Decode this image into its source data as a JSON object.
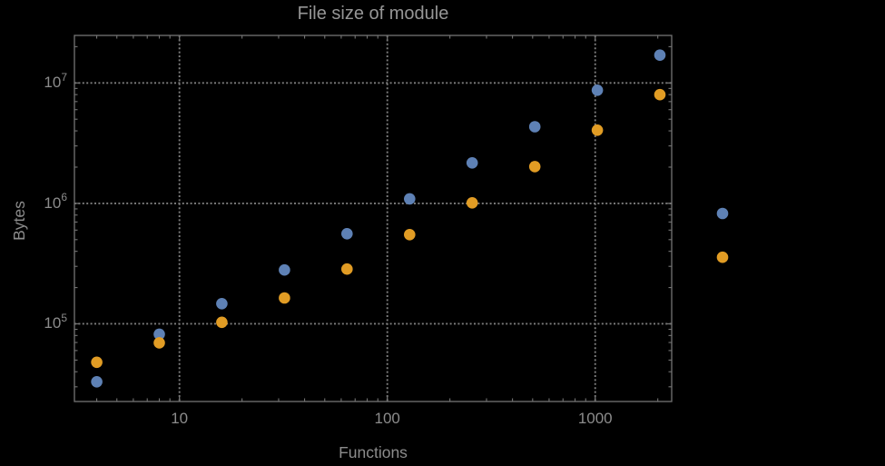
{
  "chart_data": {
    "type": "scatter",
    "title": "File size of module",
    "xlabel": "Functions",
    "ylabel": "Bytes",
    "x_scale": "log",
    "y_scale": "log",
    "xlim": [
      3.125,
      2333
    ],
    "ylim": [
      22650,
      24800000
    ],
    "grid": "dotted gray lines at powers of 10, frame ticks on all four sides",
    "legend": "none",
    "x_ticks": [
      {
        "label": "10",
        "value": 10
      },
      {
        "label": "100",
        "value": 100
      },
      {
        "label": "1000",
        "value": 1000
      }
    ],
    "y_ticks": [
      {
        "base": "10",
        "exp": "5",
        "value": 100000
      },
      {
        "base": "10",
        "exp": "6",
        "value": 1000000
      },
      {
        "base": "10",
        "exp": "7",
        "value": 10000000
      }
    ],
    "x": [
      4,
      8,
      16,
      32,
      64,
      128,
      256,
      512,
      1024,
      2048,
      4096
    ],
    "series": [
      {
        "name": "blue",
        "color": "#5e81b5",
        "values": [
          33000,
          82000,
          147000,
          280000,
          560000,
          1090000,
          2170000,
          4330000,
          8700000,
          17000000,
          825000
        ]
      },
      {
        "name": "orange",
        "color": "#e19c24",
        "values": [
          48000,
          69500,
          103000,
          164000,
          285000,
          550000,
          1010000,
          2020000,
          4050000,
          8000000,
          357000
        ]
      }
    ],
    "marker_radius_px": 6.3
  },
  "colors": {
    "background": "#000000",
    "frame": "#747474",
    "tick": "#747474",
    "grid": "#7d7d7d",
    "text": "#8c8c8c",
    "title": "#969696"
  }
}
